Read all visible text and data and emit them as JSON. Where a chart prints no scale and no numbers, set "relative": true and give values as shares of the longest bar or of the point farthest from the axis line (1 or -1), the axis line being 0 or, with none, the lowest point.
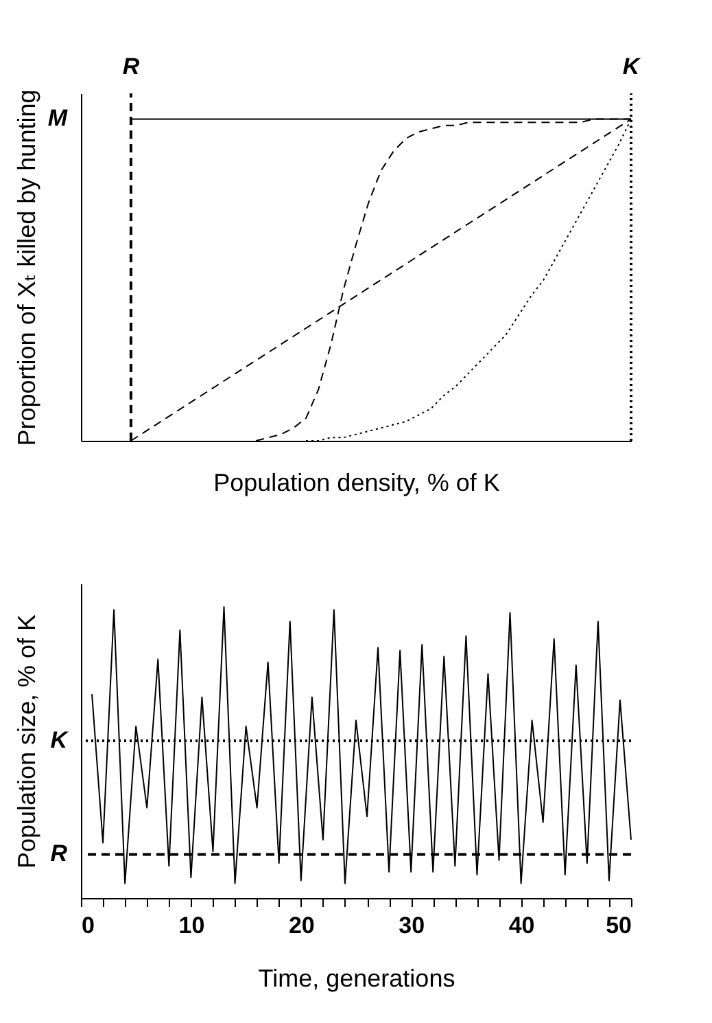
{
  "chart_data": [
    {
      "type": "line",
      "xlabel": "Population density, % of K",
      "ylabel": "Proportion of Xₜ killed by hunting",
      "relative": true,
      "tick_labels": "x",
      "annotations": [
        "M"
      ],
      "categories": [
        null,
        null,
        null,
        null,
        "R",
        null,
        null,
        null,
        null,
        null,
        null,
        null,
        null,
        null,
        null,
        null,
        null,
        null,
        null,
        null,
        null,
        null,
        null,
        null,
        null,
        null,
        null,
        null,
        null,
        null,
        null,
        null,
        null,
        null,
        null,
        null,
        null,
        null,
        null,
        null,
        null,
        null,
        null,
        null,
        "K"
      ],
      "series": [
        {
          "color": "#000000",
          "line_style": "solid",
          "values": [
            null,
            null,
            null,
            null,
            1,
            1,
            1,
            1,
            1,
            1,
            1,
            1,
            1,
            1,
            1,
            1,
            1,
            1,
            1,
            1,
            1,
            1,
            1,
            1,
            1,
            1,
            1,
            1,
            1,
            1,
            1,
            1,
            1,
            1,
            1,
            1,
            1,
            1,
            1,
            1,
            1,
            1,
            1,
            1,
            1
          ]
        },
        {
          "color": "#000000",
          "line_style": "dashed",
          "values": [
            null,
            null,
            null,
            null,
            0,
            0.025,
            0.05,
            0.075,
            0.1,
            0.125,
            0.15,
            0.175,
            0.2,
            0.225,
            0.25,
            0.275,
            0.3,
            0.325,
            0.35,
            0.375,
            0.4,
            0.425,
            0.45,
            0.475,
            0.5,
            0.525,
            0.55,
            0.575,
            0.6,
            0.625,
            0.65,
            0.675,
            0.7,
            0.725,
            0.75,
            0.775,
            0.8,
            0.825,
            0.85,
            0.875,
            0.9,
            0.925,
            0.95,
            0.975,
            1
          ]
        },
        {
          "color": "#000000",
          "line_style": "dashed",
          "values": [
            null,
            null,
            null,
            null,
            null,
            null,
            null,
            null,
            null,
            null,
            null,
            null,
            null,
            null,
            0,
            0.01,
            0.02,
            0.04,
            0.07,
            0.16,
            0.3,
            0.47,
            0.61,
            0.74,
            0.84,
            0.9,
            0.94,
            0.96,
            0.97,
            0.98,
            0.98,
            0.99,
            0.99,
            0.99,
            0.99,
            0.99,
            0.99,
            0.99,
            0.99,
            0.99,
            0.99,
            1,
            1,
            1,
            1
          ]
        },
        {
          "color": "#000000",
          "line_style": "dotted",
          "values": [
            null,
            null,
            null,
            null,
            null,
            null,
            null,
            null,
            null,
            null,
            null,
            null,
            null,
            null,
            null,
            null,
            null,
            null,
            0,
            0,
            0.01,
            0.01,
            0.02,
            0.03,
            0.04,
            0.05,
            0.06,
            0.08,
            0.1,
            0.14,
            0.17,
            0.21,
            0.25,
            0.29,
            0.33,
            0.39,
            0.45,
            0.5,
            0.57,
            0.64,
            0.71,
            0.78,
            0.85,
            0.92,
            1
          ]
        }
      ],
      "ref_lines": [
        {
          "axis": "x",
          "value": "R",
          "line_style": "dashed"
        },
        {
          "axis": "x",
          "value": "K",
          "line_style": "dotted"
        }
      ]
    },
    {
      "type": "line",
      "xlabel": "Time, generations",
      "ylabel": "Population size, % of K",
      "xlim": [
        0,
        50
      ],
      "relative": true,
      "tick_labels": "x",
      "xticks": [
        0,
        {
          "value": 2,
          "label": null
        },
        {
          "value": 4,
          "label": null
        },
        {
          "value": 6,
          "label": null
        },
        {
          "value": 8,
          "label": null
        },
        10,
        {
          "value": 12,
          "label": null
        },
        {
          "value": 14,
          "label": null
        },
        {
          "value": 16,
          "label": null
        },
        {
          "value": 18,
          "label": null
        },
        20,
        {
          "value": 22,
          "label": null
        },
        {
          "value": 24,
          "label": null
        },
        {
          "value": 26,
          "label": null
        },
        {
          "value": 28,
          "label": null
        },
        30,
        {
          "value": 32,
          "label": null
        },
        {
          "value": 34,
          "label": null
        },
        {
          "value": 36,
          "label": null
        },
        {
          "value": 38,
          "label": null
        },
        40,
        {
          "value": 42,
          "label": null
        },
        {
          "value": 44,
          "label": null
        },
        {
          "value": 46,
          "label": null
        },
        {
          "value": 48,
          "label": null
        },
        50
      ],
      "x": [
        1,
        2,
        3,
        4,
        5,
        6,
        7,
        8,
        9,
        10,
        11,
        12,
        13,
        14,
        15,
        16,
        17,
        18,
        19,
        20,
        21,
        22,
        23,
        24,
        25,
        26,
        27,
        28,
        29,
        30,
        31,
        32,
        33,
        34,
        35,
        36,
        37,
        38,
        39,
        40,
        41,
        42,
        43,
        44,
        45,
        46,
        47,
        48,
        49,
        50
      ],
      "values": [
        0.7,
        0.19,
        0.99,
        0.05,
        0.59,
        0.31,
        0.82,
        0.11,
        0.92,
        0.07,
        0.69,
        0.16,
        1,
        0.05,
        0.59,
        0.31,
        0.81,
        0.12,
        0.95,
        0.06,
        0.69,
        0.2,
        0.99,
        0.05,
        0.61,
        0.28,
        0.86,
        0.09,
        0.85,
        0.09,
        0.87,
        0.09,
        0.83,
        0.11,
        0.9,
        0.08,
        0.77,
        0.13,
        0.98,
        0.05,
        0.61,
        0.26,
        0.89,
        0.08,
        0.8,
        0.12,
        0.95,
        0.06,
        0.68,
        0.2
      ],
      "color": "#000000",
      "line_style": "solid",
      "ref_lines": [
        {
          "axis": "y",
          "value": 0.54,
          "label": "K",
          "line_style": "dotted"
        },
        {
          "axis": "y",
          "value": 0.15,
          "label": "R",
          "line_style": "dashed"
        }
      ]
    }
  ]
}
